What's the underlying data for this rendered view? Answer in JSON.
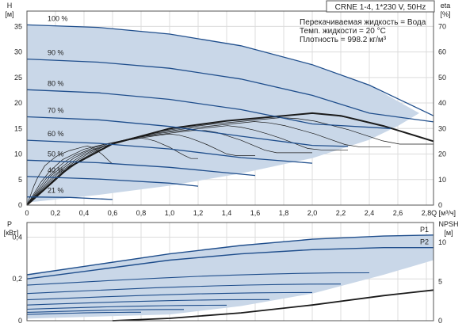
{
  "header": {
    "model": "CRNE 1-4, 1*230 V, 50Hz",
    "liquid_line": "Перекачиваемая жидкость = Вода",
    "temp_line": "Темп. жидкости = 20 °C",
    "density_line": "Плотность = 998.2 кг/м³"
  },
  "colors": {
    "frame": "#555555",
    "grid": "#dcdcdc",
    "band_fill": "#c9d7e8",
    "speed_curve": "#1f4e8c",
    "eff_curve": "#1a1a1a",
    "text": "#222222"
  },
  "chart_data": [
    {
      "type": "line",
      "xlabel": "Q [м³/ч]",
      "ylabel_left": "H",
      "ylabel_left_unit": "[м]",
      "ylabel_right": "eta",
      "ylabel_right_unit": "[%]",
      "xlim": [
        0,
        2.85
      ],
      "ylim": [
        0,
        38
      ],
      "y2lim": [
        0,
        76
      ],
      "x_ticks": [
        0,
        0.2,
        0.4,
        0.6,
        0.8,
        1.0,
        1.2,
        1.4,
        1.6,
        1.8,
        2.0,
        2.2,
        2.4,
        2.6,
        2.8
      ],
      "x_tick_labels": [
        "0",
        "0,2",
        "0,4",
        "0,6",
        "0,8",
        "1,0",
        "1,2",
        "1,4",
        "1,6",
        "1,8",
        "2,0",
        "2,2",
        "2,4",
        "2,6",
        "2,8"
      ],
      "y_ticks": [
        0,
        5,
        10,
        15,
        20,
        25,
        30,
        35
      ],
      "y2_ticks": [
        0,
        10,
        20,
        30,
        40,
        50,
        60,
        70
      ],
      "grid": true,
      "shaded_region": {
        "upper": [
          [
            0,
            35.3
          ],
          [
            0.5,
            34.8
          ],
          [
            1.0,
            33.5
          ],
          [
            1.5,
            31.2
          ],
          [
            2.0,
            27.5
          ],
          [
            2.4,
            23.5
          ],
          [
            2.75,
            18.0
          ]
        ],
        "lower": [
          [
            0,
            0.5
          ],
          [
            0.5,
            2.0
          ],
          [
            1.0,
            3.8
          ],
          [
            1.5,
            6.2
          ],
          [
            2.0,
            9.2
          ],
          [
            2.4,
            12.8
          ],
          [
            2.6,
            15.5
          ]
        ]
      },
      "speed_curves": [
        {
          "label": "100 %",
          "qmax": 2.85,
          "points": [
            [
              0,
              35.3
            ],
            [
              0.5,
              34.8
            ],
            [
              1.0,
              33.5
            ],
            [
              1.5,
              31.2
            ],
            [
              2.0,
              27.5
            ],
            [
              2.4,
              23.5
            ],
            [
              2.85,
              17.5
            ]
          ]
        },
        {
          "label": "90 %",
          "qmax": 2.85,
          "points": [
            [
              0,
              28.6
            ],
            [
              0.5,
              28.0
            ],
            [
              1.0,
              26.8
            ],
            [
              1.5,
              24.7
            ],
            [
              2.0,
              21.5
            ],
            [
              2.4,
              18.0
            ],
            [
              2.85,
              16.3
            ]
          ]
        },
        {
          "label": "80 %",
          "qmax": 2.55,
          "points": [
            [
              0,
              22.6
            ],
            [
              0.5,
              22.0
            ],
            [
              1.0,
              20.7
            ],
            [
              1.5,
              18.7
            ],
            [
              2.0,
              15.9
            ],
            [
              2.55,
              15.0
            ]
          ]
        },
        {
          "label": "70 %",
          "qmax": 2.25,
          "points": [
            [
              0,
              17.3
            ],
            [
              0.5,
              16.7
            ],
            [
              1.0,
              15.4
            ],
            [
              1.5,
              13.5
            ],
            [
              2.0,
              11.7
            ],
            [
              2.25,
              11.5
            ]
          ]
        },
        {
          "label": "60 %",
          "qmax": 2.0,
          "points": [
            [
              0,
              12.7
            ],
            [
              0.5,
              12.1
            ],
            [
              1.0,
              11.0
            ],
            [
              1.5,
              9.3
            ],
            [
              2.0,
              8.2
            ]
          ]
        },
        {
          "label": "50 %",
          "qmax": 1.6,
          "points": [
            [
              0,
              8.8
            ],
            [
              0.5,
              8.3
            ],
            [
              1.0,
              7.4
            ],
            [
              1.6,
              5.8
            ]
          ]
        },
        {
          "label": "40 %",
          "qmax": 1.2,
          "points": [
            [
              0,
              5.6
            ],
            [
              0.5,
              5.1
            ],
            [
              1.0,
              4.3
            ],
            [
              1.2,
              3.7
            ]
          ]
        },
        {
          "label": "21 %",
          "qmax": 0.6,
          "points": [
            [
              0,
              1.6
            ],
            [
              0.3,
              1.5
            ],
            [
              0.6,
              1.1
            ]
          ]
        }
      ],
      "efficiency_speeds": [
        100,
        90,
        80,
        70,
        60,
        50,
        40,
        21
      ],
      "efficiency_best": [
        [
          0,
          0
        ],
        [
          0.3,
          15
        ],
        [
          0.6,
          24
        ],
        [
          1.0,
          30
        ],
        [
          1.4,
          33
        ],
        [
          1.8,
          35
        ],
        [
          2.0,
          36
        ],
        [
          2.2,
          35
        ],
        [
          2.5,
          31
        ],
        [
          2.85,
          25
        ]
      ]
    },
    {
      "type": "line",
      "ylabel_left": "P",
      "ylabel_left_unit": "[кВт]",
      "ylabel_right": "NPSH",
      "ylabel_right_unit": "[м]",
      "xlim": [
        0,
        2.85
      ],
      "ylim": [
        0,
        0.47
      ],
      "y2lim": [
        0,
        12.5
      ],
      "y_ticks": [
        0,
        0.2,
        0.4
      ],
      "y2_ticks": [
        0,
        5,
        10
      ],
      "grid": true,
      "shaded_region": {
        "upper": [
          [
            0,
            0.22
          ],
          [
            0.5,
            0.27
          ],
          [
            1.0,
            0.32
          ],
          [
            1.5,
            0.36
          ],
          [
            2.0,
            0.39
          ],
          [
            2.5,
            0.405
          ],
          [
            2.85,
            0.41
          ]
        ],
        "lower": [
          [
            0,
            0.01
          ],
          [
            1.0,
            0.03
          ],
          [
            1.5,
            0.07
          ],
          [
            2.0,
            0.13
          ],
          [
            2.5,
            0.22
          ],
          [
            2.85,
            0.29
          ]
        ]
      },
      "series": [
        {
          "name": "P1",
          "points": [
            [
              0,
              0.22
            ],
            [
              0.5,
              0.27
            ],
            [
              1.0,
              0.32
            ],
            [
              1.5,
              0.36
            ],
            [
              2.0,
              0.39
            ],
            [
              2.5,
              0.405
            ],
            [
              2.85,
              0.41
            ]
          ]
        },
        {
          "name": "P2",
          "points": [
            [
              0,
              0.2
            ],
            [
              0.5,
              0.245
            ],
            [
              1.0,
              0.29
            ],
            [
              1.5,
              0.32
            ],
            [
              2.0,
              0.34
            ],
            [
              2.5,
              0.35
            ],
            [
              2.85,
              0.35
            ]
          ]
        }
      ],
      "power_levels": [
        {
          "p0": 0.17,
          "qmax": 2.4
        },
        {
          "p0": 0.13,
          "qmax": 2.2
        },
        {
          "p0": 0.1,
          "qmax": 2.0
        },
        {
          "p0": 0.075,
          "qmax": 1.7
        },
        {
          "p0": 0.055,
          "qmax": 1.4
        },
        {
          "p0": 0.04,
          "qmax": 1.1
        },
        {
          "p0": 0.03,
          "qmax": 0.8
        }
      ],
      "npsh": [
        [
          0.6,
          0.0
        ],
        [
          1.0,
          0.3
        ],
        [
          1.5,
          1.0
        ],
        [
          2.0,
          2.0
        ],
        [
          2.5,
          3.2
        ],
        [
          2.85,
          3.9
        ]
      ]
    }
  ]
}
